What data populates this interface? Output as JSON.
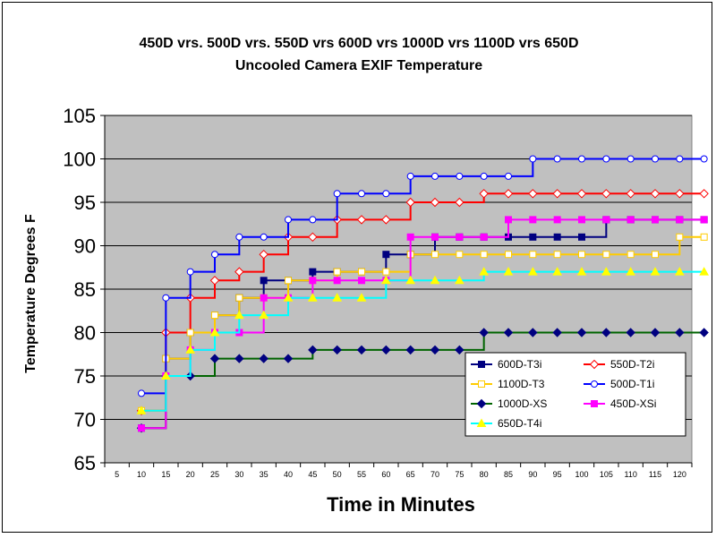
{
  "chart_data": {
    "type": "line",
    "title": "450D vrs. 500D vrs. 550D vrs 600D vrs 1000D vrs 1100D vrs 650D",
    "subtitle": "Uncooled Camera EXIF Temperature",
    "xlabel": "Time in Minutes",
    "ylabel": "Temperature Degrees F",
    "x": [
      10,
      15,
      20,
      25,
      30,
      35,
      40,
      45,
      50,
      55,
      60,
      65,
      70,
      75,
      80,
      85,
      90,
      95,
      100,
      105,
      110,
      115,
      120,
      125
    ],
    "x_tick_labels": [
      "5",
      "10",
      "15",
      "20",
      "25",
      "30",
      "35",
      "40",
      "45",
      "50",
      "55",
      "60",
      "65",
      "70",
      "75",
      "80",
      "85",
      "90",
      "95",
      "100",
      "105",
      "110",
      "115",
      "120"
    ],
    "ylim": [
      65,
      105
    ],
    "y_ticks": [
      65,
      70,
      75,
      80,
      85,
      90,
      95,
      100,
      105
    ],
    "grid": true,
    "plot_background": "#c0c0c0",
    "legend_position": "bottom-right",
    "series": [
      {
        "name": "600D-T3i",
        "color": "#000080",
        "marker": "square",
        "filled": true,
        "values": [
          69,
          77,
          80,
          82,
          84,
          86,
          86,
          87,
          87,
          87,
          89,
          89,
          91,
          91,
          91,
          91,
          91,
          91,
          91,
          93,
          93,
          93,
          93,
          93
        ]
      },
      {
        "name": "550D-T2i",
        "color": "#ff0000",
        "marker": "diamond",
        "filled": false,
        "values": [
          71,
          80,
          84,
          86,
          87,
          89,
          91,
          91,
          93,
          93,
          93,
          95,
          95,
          95,
          96,
          96,
          96,
          96,
          96,
          96,
          96,
          96,
          96,
          96
        ]
      },
      {
        "name": "1100D-T3",
        "color": "#ffcc00",
        "marker": "square",
        "filled": false,
        "values": [
          71,
          77,
          80,
          82,
          84,
          84,
          86,
          86,
          87,
          87,
          87,
          89,
          89,
          89,
          89,
          89,
          89,
          89,
          89,
          89,
          89,
          89,
          91,
          91
        ]
      },
      {
        "name": "500D-T1i",
        "color": "#0000ff",
        "marker": "circle",
        "filled": false,
        "values": [
          73,
          84,
          87,
          89,
          91,
          91,
          93,
          93,
          96,
          96,
          96,
          98,
          98,
          98,
          98,
          98,
          100,
          100,
          100,
          100,
          100,
          100,
          100,
          100
        ]
      },
      {
        "name": "1000D-XS",
        "color": "#006400",
        "marker": "diamond",
        "filled": true,
        "marker_color": "#000080",
        "values": [
          69,
          75,
          75,
          77,
          77,
          77,
          77,
          78,
          78,
          78,
          78,
          78,
          78,
          78,
          80,
          80,
          80,
          80,
          80,
          80,
          80,
          80,
          80,
          80
        ]
      },
      {
        "name": "450D-XSi",
        "color": "#ff00ff",
        "marker": "square",
        "filled": true,
        "values": [
          69,
          75,
          78,
          80,
          80,
          84,
          84,
          86,
          86,
          86,
          86,
          91,
          91,
          91,
          91,
          93,
          93,
          93,
          93,
          93,
          93,
          93,
          93,
          93
        ]
      },
      {
        "name": "650D-T4i",
        "color": "#00ffff",
        "marker": "triangle",
        "filled": true,
        "marker_color": "#ffff00",
        "values": [
          71,
          75,
          78,
          80,
          82,
          82,
          84,
          84,
          84,
          84,
          86,
          86,
          86,
          86,
          87,
          87,
          87,
          87,
          87,
          87,
          87,
          87,
          87,
          87
        ]
      }
    ]
  }
}
